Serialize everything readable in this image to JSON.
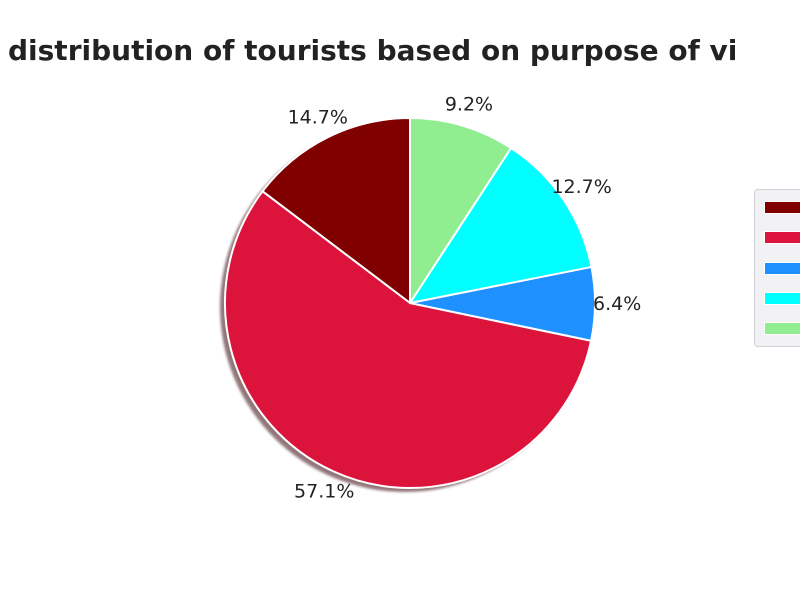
{
  "chart_data": {
    "type": "pie",
    "title": "distribution of tourists based on purpose of vi",
    "shadow": true,
    "legend_position": "right",
    "slices": [
      {
        "label": "14.7%",
        "value": 14.7,
        "color": "#800000"
      },
      {
        "label": "57.1%",
        "value": 57.1,
        "color": "#dc143c"
      },
      {
        "label": "6.4%",
        "value": 6.4,
        "color": "#1e90ff"
      },
      {
        "label": "12.7%",
        "value": 12.7,
        "color": "#00ffff"
      },
      {
        "label": "9.2%",
        "value": 9.2,
        "color": "#90ee90"
      }
    ]
  }
}
